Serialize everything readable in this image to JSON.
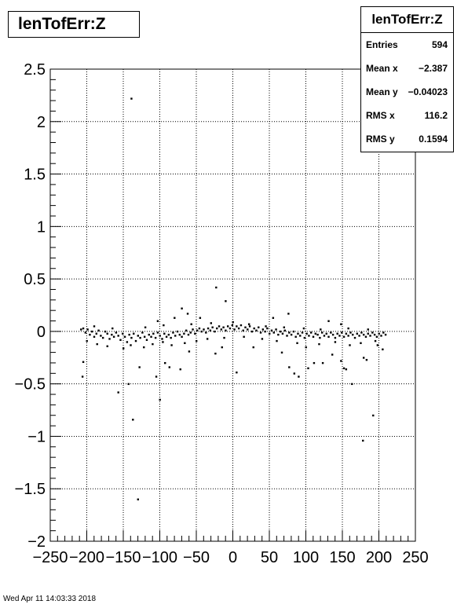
{
  "title": "lenTofErr:Z",
  "stats": {
    "title": "lenTofErr:Z",
    "rows": [
      {
        "label": "Entries",
        "value": "594"
      },
      {
        "label": "Mean x",
        "value": "−2.387"
      },
      {
        "label": "Mean y",
        "value": "−0.04023"
      },
      {
        "label": "RMS x",
        "value": "116.2"
      },
      {
        "label": "RMS y",
        "value": "0.1594"
      }
    ]
  },
  "footer": "Wed Apr 11 14:03:33 2018",
  "chart_data": {
    "type": "scatter",
    "title": "lenTofErr:Z",
    "xlabel": "",
    "ylabel": "",
    "xlim": [
      -250,
      250
    ],
    "ylim": [
      -2,
      2.5
    ],
    "grid": true,
    "xticks": [
      -250,
      -200,
      -150,
      -100,
      -50,
      0,
      50,
      100,
      150,
      200,
      250
    ],
    "xtick_labels": [
      "−250",
      "−200",
      "−150",
      "−100",
      "−50",
      "0",
      "50",
      "100",
      "150",
      "200",
      "250"
    ],
    "yticks": [
      -2,
      -1.5,
      -1,
      -0.5,
      0,
      0.5,
      1,
      1.5,
      2,
      2.5
    ],
    "ytick_labels": [
      "−2",
      "−1.5",
      "−1",
      "−0.5",
      "0",
      "0.5",
      "1",
      "1.5",
      "2",
      "2.5"
    ],
    "points": [
      [
        -139,
        2.22
      ],
      [
        -23,
        0.42
      ],
      [
        -10,
        0.29
      ],
      [
        -70,
        0.22
      ],
      [
        -62,
        0.17
      ],
      [
        -45,
        0.13
      ],
      [
        -80,
        0.13
      ],
      [
        -103,
        0.1
      ],
      [
        76,
        0.17
      ],
      [
        55,
        0.13
      ],
      [
        131,
        0.1
      ],
      [
        148,
        0.07
      ],
      [
        -205,
        -0.29
      ],
      [
        -206,
        -0.43
      ],
      [
        -157,
        -0.58
      ],
      [
        -143,
        -0.5
      ],
      [
        -137,
        -0.84
      ],
      [
        -130,
        -1.6
      ],
      [
        -100,
        -0.65
      ],
      [
        -105,
        -0.43
      ],
      [
        -128,
        -0.34
      ],
      [
        -72,
        -0.36
      ],
      [
        -87,
        -0.34
      ],
      [
        -93,
        -0.3
      ],
      [
        -60,
        -0.19
      ],
      [
        -24,
        -0.21
      ],
      [
        5,
        -0.39
      ],
      [
        -15,
        -0.15
      ],
      [
        28,
        -0.15
      ],
      [
        67,
        -0.2
      ],
      [
        77,
        -0.34
      ],
      [
        84,
        -0.4
      ],
      [
        90,
        -0.43
      ],
      [
        103,
        -0.35
      ],
      [
        111,
        -0.3
      ],
      [
        123,
        -0.3
      ],
      [
        136,
        -0.22
      ],
      [
        148,
        -0.28
      ],
      [
        152,
        -0.35
      ],
      [
        155,
        -0.36
      ],
      [
        163,
        -0.5
      ],
      [
        178,
        -1.04
      ],
      [
        192,
        -0.8
      ],
      [
        183,
        -0.27
      ],
      [
        179,
        -0.25
      ],
      [
        198,
        -0.13
      ],
      [
        205,
        -0.17
      ],
      [
        -208,
        0.02
      ],
      [
        -205,
        0.03
      ],
      [
        -202,
        -0.01
      ],
      [
        -199,
        0.02
      ],
      [
        -196,
        -0.03
      ],
      [
        -193,
        0.0
      ],
      [
        -190,
        -0.05
      ],
      [
        -187,
        -0.02
      ],
      [
        -184,
        0.01
      ],
      [
        -181,
        -0.04
      ],
      [
        -178,
        -0.06
      ],
      [
        -175,
        0.0
      ],
      [
        -172,
        -0.02
      ],
      [
        -169,
        -0.07
      ],
      [
        -166,
        -0.03
      ],
      [
        -163,
        -0.05
      ],
      [
        -160,
        -0.01
      ],
      [
        -157,
        -0.04
      ],
      [
        -154,
        -0.08
      ],
      [
        -151,
        -0.02
      ],
      [
        -148,
        -0.05
      ],
      [
        -145,
        -0.1
      ],
      [
        -142,
        -0.03
      ],
      [
        -139,
        -0.06
      ],
      [
        -136,
        -0.02
      ],
      [
        -133,
        -0.09
      ],
      [
        -130,
        -0.04
      ],
      [
        -127,
        -0.06
      ],
      [
        -124,
        -0.01
      ],
      [
        -121,
        -0.05
      ],
      [
        -118,
        -0.08
      ],
      [
        -115,
        -0.03
      ],
      [
        -112,
        -0.05
      ],
      [
        -109,
        -0.02
      ],
      [
        -106,
        -0.06
      ],
      [
        -103,
        -0.01
      ],
      [
        -100,
        -0.04
      ],
      [
        -97,
        -0.07
      ],
      [
        -94,
        -0.02
      ],
      [
        -91,
        -0.05
      ],
      [
        -88,
        -0.03
      ],
      [
        -85,
        -0.06
      ],
      [
        -82,
        -0.01
      ],
      [
        -79,
        -0.04
      ],
      [
        -76,
        0.0
      ],
      [
        -73,
        -0.03
      ],
      [
        -70,
        -0.05
      ],
      [
        -67,
        -0.02
      ],
      [
        -64,
        0.01
      ],
      [
        -61,
        -0.03
      ],
      [
        -58,
        -0.01
      ],
      [
        -55,
        0.02
      ],
      [
        -52,
        -0.02
      ],
      [
        -49,
        0.01
      ],
      [
        -46,
        0.03
      ],
      [
        -43,
        0.0
      ],
      [
        -40,
        0.02
      ],
      [
        -37,
        -0.01
      ],
      [
        -34,
        0.03
      ],
      [
        -31,
        0.01
      ],
      [
        -28,
        0.04
      ],
      [
        -25,
        0.0
      ],
      [
        -22,
        0.03
      ],
      [
        -19,
        0.05
      ],
      [
        -16,
        0.02
      ],
      [
        -13,
        0.04
      ],
      [
        -10,
        0.01
      ],
      [
        -7,
        0.05
      ],
      [
        -4,
        0.03
      ],
      [
        -1,
        0.06
      ],
      [
        2,
        0.02
      ],
      [
        5,
        0.05
      ],
      [
        8,
        0.03
      ],
      [
        11,
        0.06
      ],
      [
        14,
        0.01
      ],
      [
        17,
        0.04
      ],
      [
        20,
        0.02
      ],
      [
        23,
        0.05
      ],
      [
        26,
        0.0
      ],
      [
        29,
        0.03
      ],
      [
        32,
        0.01
      ],
      [
        35,
        0.04
      ],
      [
        38,
        -0.01
      ],
      [
        41,
        0.02
      ],
      [
        44,
        0.0
      ],
      [
        47,
        0.03
      ],
      [
        50,
        -0.02
      ],
      [
        53,
        0.01
      ],
      [
        56,
        -0.01
      ],
      [
        59,
        0.02
      ],
      [
        62,
        -0.03
      ],
      [
        65,
        0.0
      ],
      [
        68,
        -0.02
      ],
      [
        71,
        0.01
      ],
      [
        74,
        -0.04
      ],
      [
        77,
        -0.01
      ],
      [
        80,
        -0.03
      ],
      [
        83,
        0.0
      ],
      [
        86,
        -0.05
      ],
      [
        89,
        -0.02
      ],
      [
        92,
        -0.04
      ],
      [
        95,
        -0.01
      ],
      [
        98,
        -0.06
      ],
      [
        101,
        -0.02
      ],
      [
        104,
        -0.04
      ],
      [
        107,
        -0.01
      ],
      [
        110,
        -0.05
      ],
      [
        113,
        -0.02
      ],
      [
        116,
        -0.03
      ],
      [
        119,
        -0.06
      ],
      [
        122,
        -0.01
      ],
      [
        125,
        -0.04
      ],
      [
        128,
        -0.02
      ],
      [
        131,
        -0.05
      ],
      [
        134,
        -0.01
      ],
      [
        137,
        -0.03
      ],
      [
        140,
        -0.06
      ],
      [
        143,
        -0.02
      ],
      [
        146,
        -0.04
      ],
      [
        149,
        -0.01
      ],
      [
        152,
        -0.05
      ],
      [
        155,
        -0.02
      ],
      [
        158,
        -0.04
      ],
      [
        161,
        -0.01
      ],
      [
        164,
        -0.03
      ],
      [
        167,
        -0.06
      ],
      [
        170,
        -0.02
      ],
      [
        173,
        -0.04
      ],
      [
        176,
        -0.01
      ],
      [
        179,
        -0.03
      ],
      [
        182,
        -0.05
      ],
      [
        185,
        -0.02
      ],
      [
        188,
        -0.04
      ],
      [
        191,
        -0.01
      ],
      [
        194,
        -0.03
      ],
      [
        197,
        -0.05
      ],
      [
        200,
        -0.02
      ],
      [
        203,
        -0.04
      ],
      [
        206,
        -0.01
      ],
      [
        209,
        -0.03
      ],
      [
        -200,
        -0.09
      ],
      [
        -186,
        -0.12
      ],
      [
        -172,
        -0.14
      ],
      [
        -150,
        -0.16
      ],
      [
        -140,
        -0.13
      ],
      [
        -122,
        -0.15
      ],
      [
        -110,
        -0.12
      ],
      [
        -96,
        -0.1
      ],
      [
        -84,
        -0.13
      ],
      [
        -66,
        -0.11
      ],
      [
        -50,
        -0.09
      ],
      [
        -35,
        -0.07
      ],
      [
        -12,
        -0.06
      ],
      [
        15,
        -0.05
      ],
      [
        40,
        -0.07
      ],
      [
        60,
        -0.09
      ],
      [
        88,
        -0.11
      ],
      [
        100,
        -0.15
      ],
      [
        118,
        -0.12
      ],
      [
        140,
        -0.1
      ],
      [
        160,
        -0.13
      ],
      [
        175,
        -0.11
      ],
      [
        195,
        -0.09
      ],
      [
        -190,
        0.05
      ],
      [
        -165,
        0.03
      ],
      [
        -120,
        0.04
      ],
      [
        -95,
        0.06
      ],
      [
        -57,
        0.07
      ],
      [
        -30,
        0.08
      ],
      [
        0,
        0.09
      ],
      [
        22,
        0.07
      ],
      [
        45,
        0.05
      ],
      [
        70,
        0.04
      ],
      [
        97,
        0.03
      ],
      [
        120,
        0.02
      ],
      [
        158,
        0.03
      ],
      [
        185,
        0.02
      ]
    ]
  }
}
